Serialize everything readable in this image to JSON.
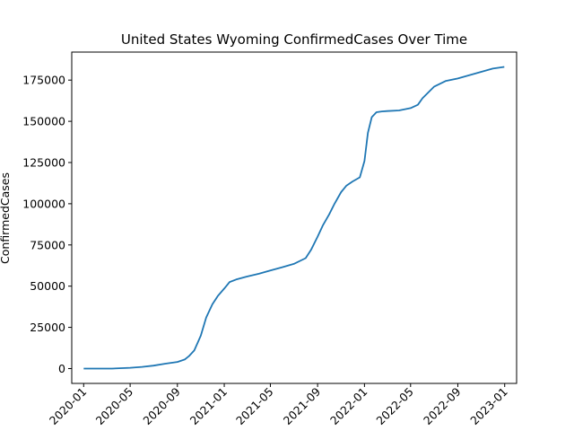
{
  "chart_data": {
    "type": "line",
    "title": "United States Wyoming ConfirmedCases Over Time",
    "xlabel": "",
    "ylabel": "ConfirmedCases",
    "x_ticks": [
      "2020-01",
      "2020-05",
      "2020-09",
      "2021-01",
      "2021-05",
      "2021-09",
      "2022-01",
      "2022-05",
      "2022-09",
      "2023-01"
    ],
    "y_ticks": [
      0,
      25000,
      50000,
      75000,
      100000,
      125000,
      150000,
      175000
    ],
    "y_tick_labels": [
      "0",
      "25000",
      "50000",
      "75000",
      "100000",
      "125000",
      "150000",
      "175000"
    ],
    "xlim": [
      "2019-12-01",
      "2023-02-01"
    ],
    "ylim": [
      -9000,
      192000
    ],
    "grid": false,
    "series": [
      {
        "color": "#1f77b4",
        "x": [
          "2020-01-01",
          "2020-03-15",
          "2020-05-01",
          "2020-06-01",
          "2020-07-01",
          "2020-08-01",
          "2020-09-01",
          "2020-09-20",
          "2020-10-01",
          "2020-10-15",
          "2020-11-01",
          "2020-11-15",
          "2020-12-01",
          "2020-12-15",
          "2021-01-01",
          "2021-01-15",
          "2021-02-01",
          "2021-03-01",
          "2021-04-01",
          "2021-05-01",
          "2021-06-01",
          "2021-07-01",
          "2021-08-01",
          "2021-08-15",
          "2021-09-01",
          "2021-09-15",
          "2021-10-01",
          "2021-10-15",
          "2021-11-01",
          "2021-11-15",
          "2021-12-01",
          "2021-12-20",
          "2022-01-01",
          "2022-01-10",
          "2022-01-20",
          "2022-02-01",
          "2022-02-15",
          "2022-03-01",
          "2022-04-01",
          "2022-05-01",
          "2022-05-20",
          "2022-06-01",
          "2022-07-01",
          "2022-08-01",
          "2022-09-01",
          "2022-10-01",
          "2022-11-01",
          "2022-12-01",
          "2022-12-31"
        ],
        "values": [
          0,
          0,
          500,
          1000,
          1800,
          3000,
          4000,
          5500,
          7500,
          11000,
          20000,
          31000,
          39000,
          44000,
          48500,
          52500,
          54000,
          55800,
          57500,
          59500,
          61500,
          63500,
          67000,
          72000,
          80000,
          87000,
          93500,
          100000,
          107000,
          111000,
          113500,
          116000,
          126000,
          143000,
          152500,
          155500,
          156000,
          156200,
          156600,
          158000,
          160000,
          164000,
          171000,
          174500,
          176000,
          178000,
          180000,
          182000,
          183000
        ]
      }
    ]
  }
}
